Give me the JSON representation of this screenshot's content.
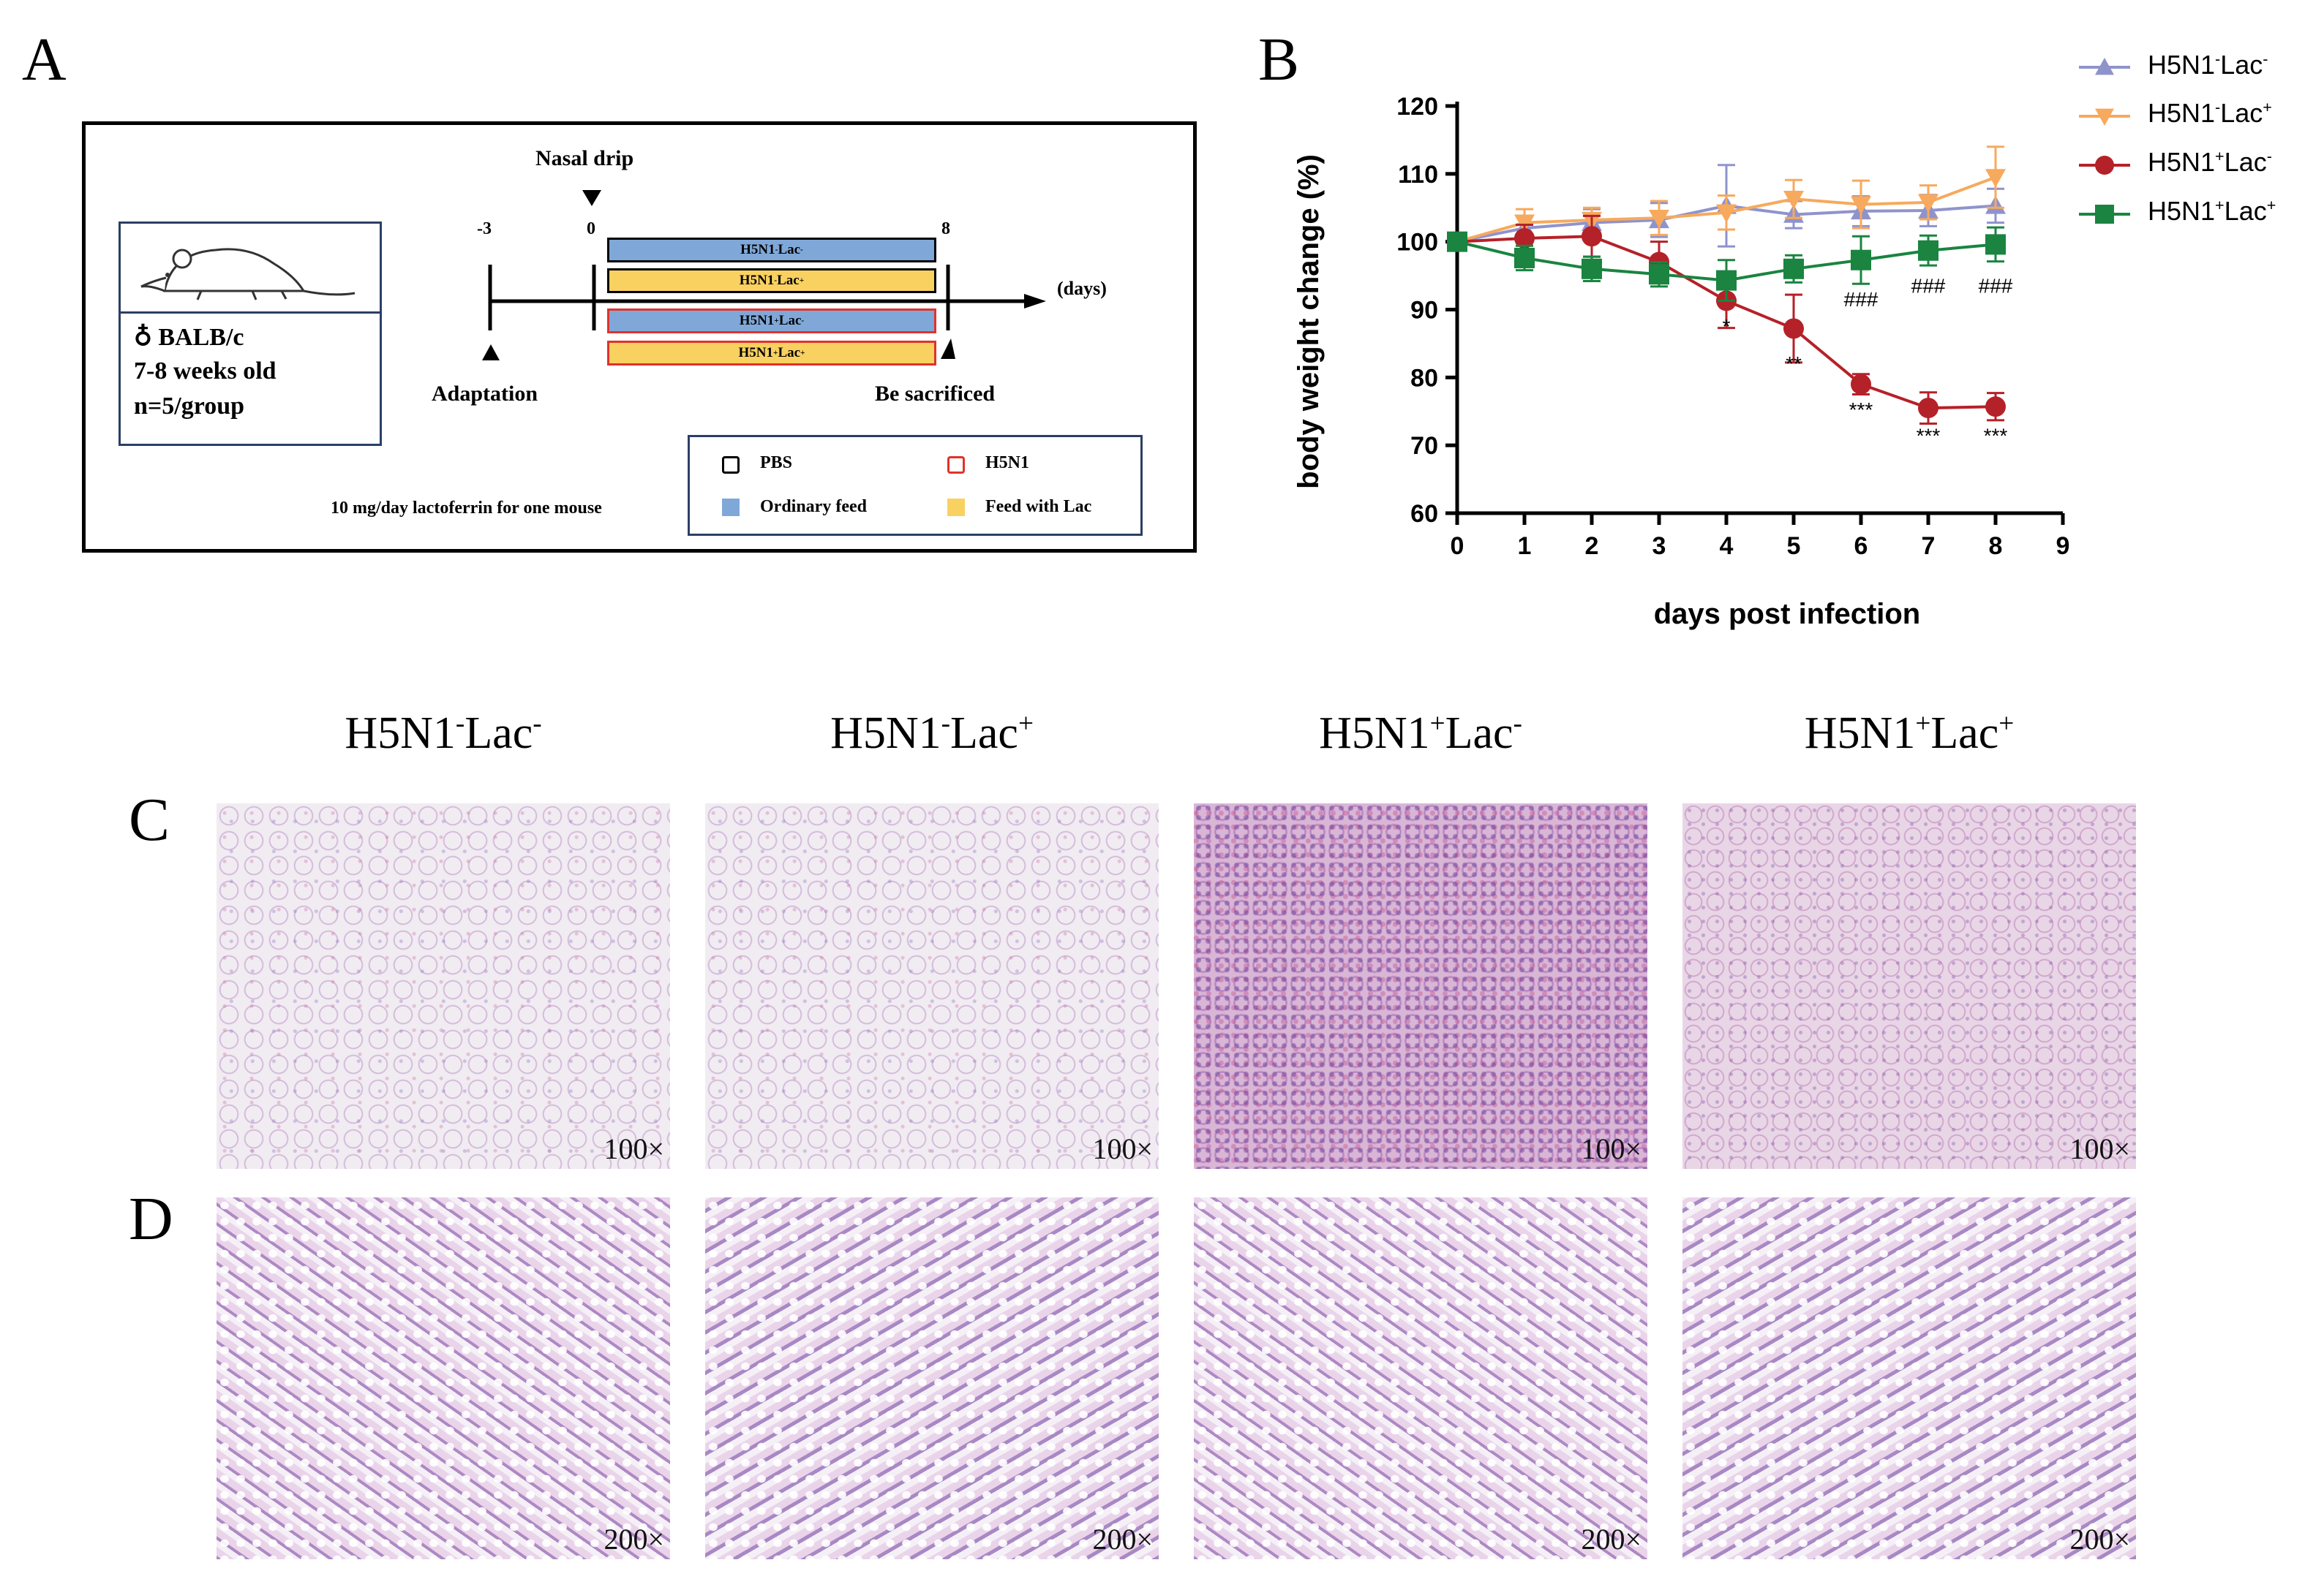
{
  "panels": {
    "a": "A",
    "b": "B",
    "c": "C",
    "d": "D"
  },
  "panel_a": {
    "nasal_drip": "Nasal drip",
    "day_start": "-3",
    "day_zero": "0",
    "day_end": "8",
    "days_label": "(days)",
    "adaptation": "Adaptation",
    "sacrificed": "Be sacrificed",
    "mouse_info": [
      "♁ BALB/c",
      "7-8 weeks old",
      "n=5/group"
    ],
    "groups": [
      {
        "base": "H5N1",
        "s1": "-",
        "mid": "Lac",
        "s2": "-",
        "fill": "blue",
        "border": "black"
      },
      {
        "base": "H5N1",
        "s1": "-",
        "mid": "Lac",
        "s2": "+",
        "fill": "yellow",
        "border": "black"
      },
      {
        "base": "H5N1",
        "s1": "+",
        "mid": "Lac",
        "s2": "-",
        "fill": "blue",
        "border": "red"
      },
      {
        "base": "H5N1",
        "s1": "+",
        "mid": "Lac",
        "s2": "+",
        "fill": "yellow",
        "border": "red"
      }
    ],
    "lactoferrin_note": "10 mg/day lactoferrin for one mouse",
    "legend": {
      "pbs": "PBS",
      "h5n1": "H5N1",
      "ordinary_feed": "Ordinary feed",
      "feed_with_lac": "Feed with Lac"
    },
    "colors": {
      "blue": "#7fa8d9",
      "yellow": "#f9d160",
      "red": "#e0322b",
      "frame": "#2b3f66"
    }
  },
  "chart_data": {
    "type": "line",
    "xlabel": "days post infection",
    "ylabel": "body weight change (%)",
    "x": [
      0,
      1,
      2,
      3,
      4,
      5,
      6,
      7,
      8
    ],
    "xlim": [
      0,
      9
    ],
    "ylim": [
      60,
      120
    ],
    "xticks": [
      0,
      1,
      2,
      3,
      4,
      5,
      6,
      7,
      8,
      9
    ],
    "yticks": [
      60,
      70,
      80,
      90,
      100,
      110,
      120
    ],
    "grid": false,
    "legend_position": "top-right",
    "series": [
      {
        "name": "H5N1-Lac-",
        "base": "H5N1",
        "s1": "-",
        "mid": "Lac",
        "s2": "-",
        "color": "#8f93cc",
        "marker": "triangle-up",
        "values": [
          100,
          102,
          102.8,
          103.2,
          105.3,
          104,
          104.5,
          104.6,
          105.3
        ],
        "errors": [
          0,
          1.8,
          2,
          2.5,
          6,
          2,
          2.2,
          2.3,
          2.5
        ]
      },
      {
        "name": "H5N1-Lac+",
        "base": "H5N1",
        "s1": "-",
        "mid": "Lac",
        "s2": "+",
        "color": "#f7a95d",
        "marker": "triangle-down",
        "values": [
          100,
          102.8,
          103.2,
          103.5,
          104.3,
          106.3,
          105.5,
          105.8,
          109.5
        ],
        "errors": [
          0,
          2,
          1.8,
          2.5,
          2.5,
          2.8,
          3.5,
          2.5,
          4.5
        ]
      },
      {
        "name": "H5N1+Lac-",
        "base": "H5N1",
        "s1": "+",
        "mid": "Lac",
        "s2": "-",
        "color": "#b52128",
        "marker": "circle",
        "values": [
          100,
          100.5,
          100.8,
          97,
          91.3,
          87.2,
          79,
          75.5,
          75.7
        ],
        "errors": [
          0,
          2,
          3,
          3,
          4,
          5,
          1.5,
          2.3,
          2
        ]
      },
      {
        "name": "H5N1+Lac+",
        "base": "H5N1",
        "s1": "+",
        "mid": "Lac",
        "s2": "+",
        "color": "#1a8440",
        "marker": "square",
        "values": [
          100,
          97.6,
          96,
          95.2,
          94.3,
          96,
          97.3,
          98.7,
          99.6
        ],
        "errors": [
          0,
          1.8,
          1.8,
          1.8,
          3,
          2,
          3.5,
          2.2,
          2.5
        ]
      }
    ],
    "annotations": [
      {
        "x": 4,
        "y": 86.5,
        "text": "*"
      },
      {
        "x": 5,
        "y": 81,
        "text": "**"
      },
      {
        "x": 6,
        "y": 74.2,
        "text": "***"
      },
      {
        "x": 7,
        "y": 70.4,
        "text": "***"
      },
      {
        "x": 8,
        "y": 70.4,
        "text": "***"
      },
      {
        "x": 6,
        "y": 90.5,
        "text": "###"
      },
      {
        "x": 7,
        "y": 92.5,
        "text": "###"
      },
      {
        "x": 8,
        "y": 92.5,
        "text": "###"
      }
    ]
  },
  "histology": {
    "columns": [
      {
        "base": "H5N1",
        "s1": "-",
        "mid": "Lac",
        "s2": "-"
      },
      {
        "base": "H5N1",
        "s1": "-",
        "mid": "Lac",
        "s2": "+"
      },
      {
        "base": "H5N1",
        "s1": "+",
        "mid": "Lac",
        "s2": "-"
      },
      {
        "base": "H5N1",
        "s1": "+",
        "mid": "Lac",
        "s2": "+"
      }
    ],
    "lung_magnification": "100×",
    "colon_magnification": "200×"
  }
}
